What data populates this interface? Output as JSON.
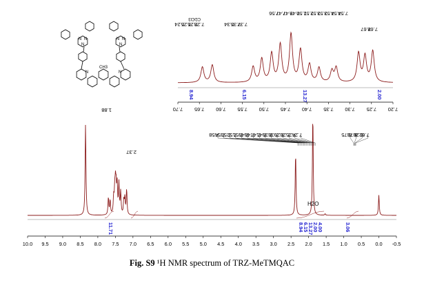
{
  "caption": {
    "label": "Fig. S9",
    "text": "¹H NMR spectrum of TRZ-MeTMQAC"
  },
  "structure": {
    "ring_atoms": [
      "N",
      "N",
      "N",
      "N",
      "N",
      "N"
    ],
    "core_atoms": [
      "N",
      "N"
    ],
    "bridge_label": "CH3"
  },
  "chart_data": [
    {
      "type": "line",
      "title": "",
      "xlabel": "",
      "ylabel": "",
      "x_axis_reversed": true,
      "xlim": [
        10.0,
        -0.5
      ],
      "x_ticks": [
        "10.0",
        "9.5",
        "9.0",
        "8.5",
        "8.0",
        "7.5",
        "7.0",
        "6.5",
        "6.0",
        "5.5",
        "5.0",
        "4.5",
        "4.0",
        "3.5",
        "3.0",
        "2.5",
        "2.0",
        "1.5",
        "1.0",
        "0.5",
        "0.0",
        "-0.5"
      ],
      "peaks": [
        {
          "ppm": 0.0,
          "height": 0.2
        },
        {
          "ppm": 1.53,
          "height": 0.015
        },
        {
          "ppm": 1.88,
          "height": 1.0
        },
        {
          "ppm": 2.37,
          "height": 0.62
        },
        {
          "ppm": 7.18,
          "height": 0.25
        },
        {
          "ppm": 7.23,
          "height": 0.16
        },
        {
          "ppm": 7.26,
          "height": 0.14
        },
        {
          "ppm": 7.35,
          "height": 0.22
        },
        {
          "ppm": 7.4,
          "height": 0.3
        },
        {
          "ppm": 7.45,
          "height": 0.28
        },
        {
          "ppm": 7.48,
          "height": 0.24
        },
        {
          "ppm": 7.5,
          "height": 0.26
        },
        {
          "ppm": 7.52,
          "height": 0.2
        },
        {
          "ppm": 7.55,
          "height": 0.16
        },
        {
          "ppm": 7.65,
          "height": 0.14
        },
        {
          "ppm": 7.7,
          "height": 0.17
        },
        {
          "ppm": 8.35,
          "height": 0.9
        }
      ],
      "peak_labels": {
        "group_left": [
          "8.75",
          "8.73",
          "8.28",
          "7.62"
        ],
        "group_right": [
          "7.58",
          "7.54",
          "7.53",
          "7.52",
          "7.51",
          "7.49",
          "7.48",
          "7.47",
          "7.41",
          "7.39",
          "7.38",
          "7.29",
          "7.28",
          "7.25",
          "7.24"
        ],
        "single_a": "2.37",
        "single_b": "1.88"
      },
      "integrations": [
        "8.94",
        "6.15",
        "13.27",
        "2.00",
        "4.00",
        "3.06",
        "11.71"
      ],
      "annotations": [
        {
          "text": "H2O",
          "ppm": 1.56
        }
      ]
    },
    {
      "type": "line",
      "title": "",
      "xlabel": "",
      "ylabel": "",
      "x_axis_reversed": true,
      "xlim": [
        7.7,
        7.2
      ],
      "x_ticks": [
        "7.70",
        "7.65",
        "7.60",
        "7.55",
        "7.50",
        "7.45",
        "7.40",
        "7.35",
        "7.30",
        "7.25",
        "7.20"
      ],
      "peaks": [
        {
          "ppm": 7.28,
          "height": 0.56
        },
        {
          "ppm": 7.265,
          "height": 0.5
        },
        {
          "ppm": 7.247,
          "height": 0.6
        },
        {
          "ppm": 7.332,
          "height": 0.28
        },
        {
          "ppm": 7.342,
          "height": 0.22
        },
        {
          "ppm": 7.372,
          "height": 0.28
        },
        {
          "ppm": 7.394,
          "height": 0.34
        },
        {
          "ppm": 7.415,
          "height": 0.62
        },
        {
          "ppm": 7.437,
          "height": 0.92
        },
        {
          "ppm": 7.462,
          "height": 0.72
        },
        {
          "ppm": 7.482,
          "height": 0.55
        },
        {
          "ppm": 7.505,
          "height": 0.45
        },
        {
          "ppm": 7.525,
          "height": 0.3
        },
        {
          "ppm": 7.62,
          "height": 0.34
        },
        {
          "ppm": 7.643,
          "height": 0.3
        }
      ],
      "peak_labels": {
        "group_a": [
          "7.24",
          "7.25",
          "7.26",
          "7.28"
        ],
        "cdcl3": "CDCl3",
        "group_b": [
          "7.34",
          "7.35",
          "7.37"
        ],
        "group_c": [
          "7.56",
          "7.47",
          "7.47",
          "7.49",
          "7.50",
          "7.51",
          "7.52",
          "7.53",
          "7.53",
          "7.54",
          "7.54"
        ],
        "group_d": [
          "7.67",
          "7.68"
        ]
      },
      "integrations": [
        "8.94",
        "6.15",
        "13.27",
        "2.00"
      ]
    }
  ]
}
